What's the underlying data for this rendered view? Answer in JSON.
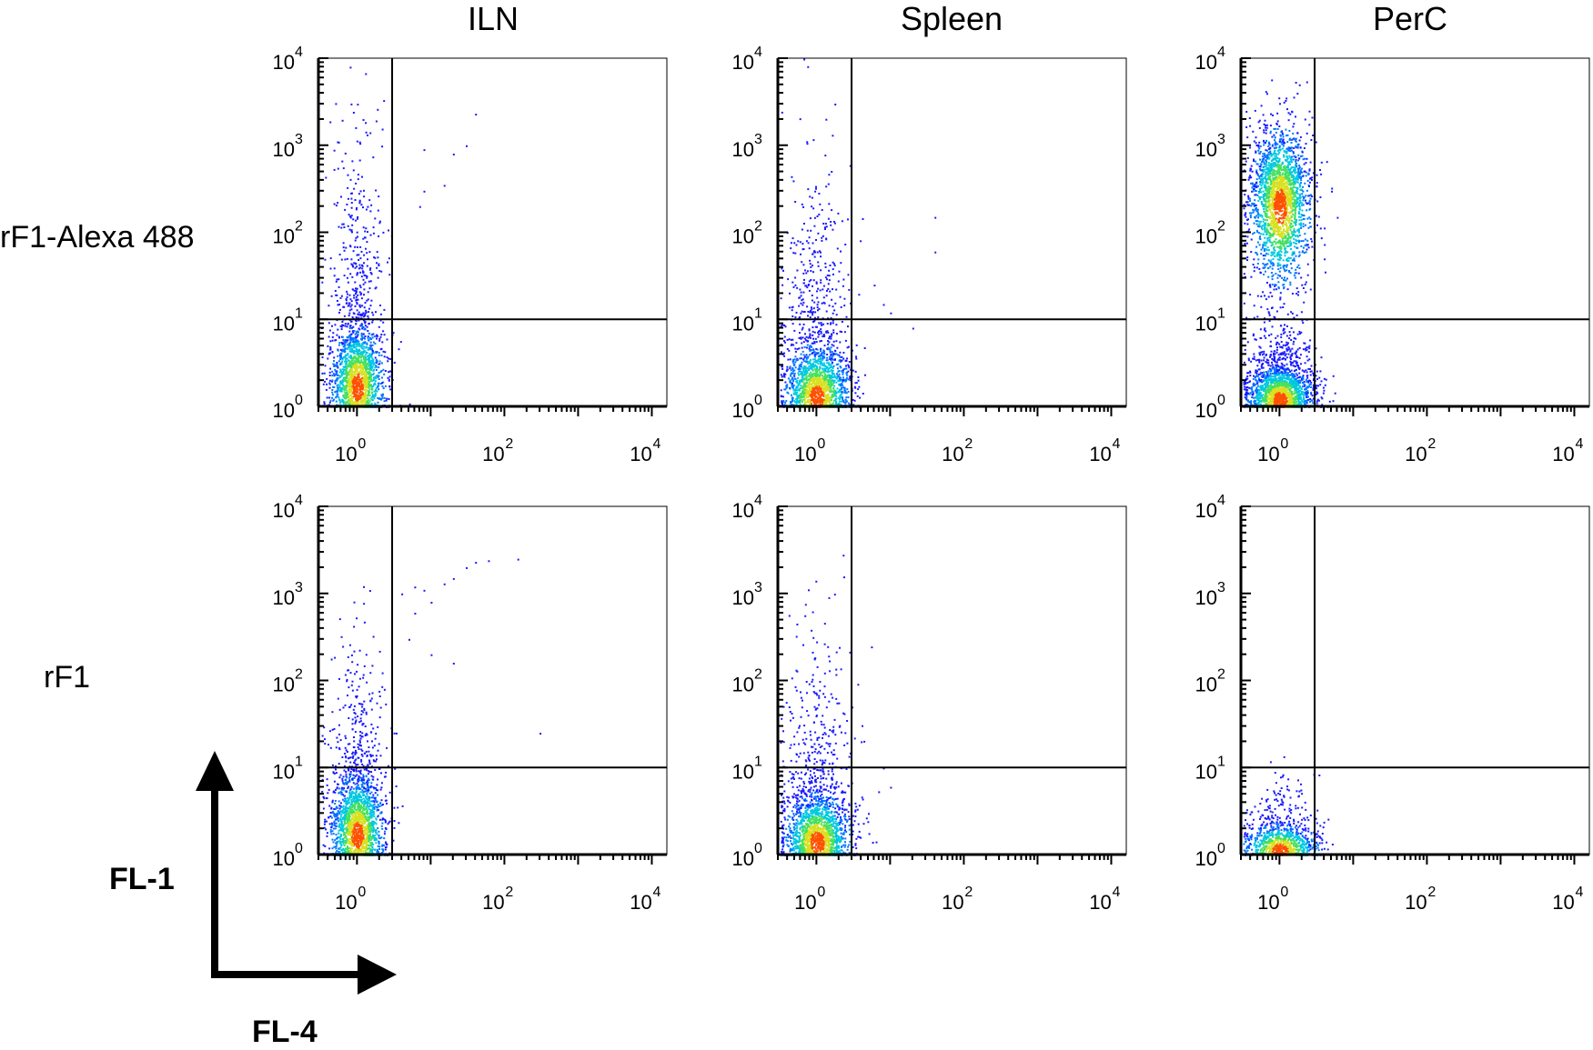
{
  "columns": [
    "ILN",
    "Spleen",
    "PerC"
  ],
  "rows": [
    "rF1-Alexa 488",
    "rF1"
  ],
  "axis_names": {
    "y": "FL-1",
    "x": "FL-4"
  },
  "tick_base": "10",
  "palette": [
    "#1a1aff",
    "#0077ff",
    "#00c8e0",
    "#44e060",
    "#d8e020",
    "#ff5000"
  ],
  "chart_data": [
    {
      "type": "scatter",
      "title": "ILN",
      "row": "rF1-Alexa 488",
      "xlabel": "FL-4",
      "ylabel": "FL-1",
      "x_scale": "log",
      "y_scale": "log",
      "xlim": [
        0.3,
        16000
      ],
      "ylim": [
        1,
        10000
      ],
      "x_ticks": [
        1,
        100,
        10000
      ],
      "y_ticks": [
        1,
        10,
        100,
        1000,
        10000
      ],
      "x_gate": 3,
      "y_gate": 10,
      "populations": [
        {
          "x_center": 1.0,
          "y_center": 1.7,
          "x_spread_decades": 0.18,
          "y_spread_decades": 0.35,
          "y_tail_to": 1500,
          "density": "high"
        }
      ],
      "outlier_points": [
        [
          8,
          900
        ],
        [
          20,
          800
        ],
        [
          30,
          1000
        ],
        [
          40,
          2300
        ],
        [
          15,
          350
        ],
        [
          7,
          200
        ],
        [
          8,
          300
        ]
      ]
    },
    {
      "type": "scatter",
      "title": "Spleen",
      "row": "rF1-Alexa 488",
      "xlabel": "FL-4",
      "ylabel": "FL-1",
      "x_scale": "log",
      "y_scale": "log",
      "xlim": [
        0.3,
        16000
      ],
      "ylim": [
        1,
        10000
      ],
      "x_ticks": [
        1,
        100,
        10000
      ],
      "y_ticks": [
        1,
        10,
        100,
        1000,
        10000
      ],
      "x_gate": 3,
      "y_gate": 10,
      "populations": [
        {
          "x_center": 1.0,
          "y_center": 1.3,
          "x_spread_decades": 0.22,
          "y_spread_decades": 0.3,
          "y_tail_to": 500,
          "density": "high"
        }
      ],
      "outlier_points": [
        [
          6,
          25
        ],
        [
          8,
          15
        ],
        [
          10,
          12
        ],
        [
          40,
          150
        ],
        [
          40,
          60
        ],
        [
          20,
          8
        ]
      ]
    },
    {
      "type": "scatter",
      "title": "PerC",
      "row": "rF1-Alexa 488",
      "xlabel": "FL-4",
      "ylabel": "FL-1",
      "x_scale": "log",
      "y_scale": "log",
      "xlim": [
        0.3,
        16000
      ],
      "ylim": [
        1,
        10000
      ],
      "x_ticks": [
        1,
        100,
        10000
      ],
      "y_ticks": [
        1,
        10,
        100,
        1000,
        10000
      ],
      "x_gate": 3,
      "y_gate": 10,
      "populations": [
        {
          "x_center": 1.0,
          "y_center": 200,
          "x_spread_decades": 0.2,
          "y_spread_decades": 0.45,
          "y_tail_to": 1500,
          "density": "high"
        },
        {
          "x_center": 1.0,
          "y_center": 1.2,
          "x_spread_decades": 0.22,
          "y_spread_decades": 0.2,
          "y_tail_to": 10,
          "density": "high"
        }
      ],
      "outlier_points": [
        [
          5,
          300
        ],
        [
          6,
          150
        ],
        [
          4,
          50
        ]
      ]
    },
    {
      "type": "scatter",
      "title": "ILN",
      "row": "rF1",
      "xlabel": "FL-4",
      "ylabel": "FL-1",
      "x_scale": "log",
      "y_scale": "log",
      "xlim": [
        0.3,
        16000
      ],
      "ylim": [
        1,
        10000
      ],
      "x_ticks": [
        1,
        100,
        10000
      ],
      "y_ticks": [
        1,
        10,
        100,
        1000,
        10000
      ],
      "x_gate": 3,
      "y_gate": 10,
      "populations": [
        {
          "x_center": 1.0,
          "y_center": 1.7,
          "x_spread_decades": 0.18,
          "y_spread_decades": 0.35,
          "y_tail_to": 300,
          "density": "high"
        }
      ],
      "outlier_points": [
        [
          4,
          1000
        ],
        [
          6,
          1200
        ],
        [
          8,
          1100
        ],
        [
          10,
          800
        ],
        [
          15,
          1300
        ],
        [
          20,
          1500
        ],
        [
          30,
          2000
        ],
        [
          40,
          2300
        ],
        [
          60,
          2400
        ],
        [
          150,
          2500
        ],
        [
          300,
          25
        ],
        [
          20,
          160
        ],
        [
          10,
          200
        ],
        [
          6,
          600
        ],
        [
          5,
          300
        ]
      ]
    },
    {
      "type": "scatter",
      "title": "Spleen",
      "row": "rF1",
      "xlabel": "FL-4",
      "ylabel": "FL-1",
      "x_scale": "log",
      "y_scale": "log",
      "xlim": [
        0.3,
        16000
      ],
      "ylim": [
        1,
        10000
      ],
      "x_ticks": [
        1,
        100,
        10000
      ],
      "y_ticks": [
        1,
        10,
        100,
        1000,
        10000
      ],
      "x_gate": 3,
      "y_gate": 10,
      "populations": [
        {
          "x_center": 1.0,
          "y_center": 1.4,
          "x_spread_decades": 0.22,
          "y_spread_decades": 0.28,
          "y_tail_to": 250,
          "density": "high"
        }
      ],
      "outlier_points": [
        [
          3,
          50
        ],
        [
          4,
          20
        ],
        [
          8,
          10
        ],
        [
          10,
          6
        ],
        [
          5,
          3
        ]
      ]
    },
    {
      "type": "scatter",
      "title": "PerC",
      "row": "rF1",
      "xlabel": "FL-4",
      "ylabel": "FL-1",
      "x_scale": "log",
      "y_scale": "log",
      "xlim": [
        0.3,
        16000
      ],
      "ylim": [
        1,
        10000
      ],
      "x_ticks": [
        1,
        100,
        10000
      ],
      "y_ticks": [
        1,
        10,
        100,
        1000,
        10000
      ],
      "x_gate": 3,
      "y_gate": 10,
      "populations": [
        {
          "x_center": 1.0,
          "y_center": 1.15,
          "x_spread_decades": 0.25,
          "y_spread_decades": 0.15,
          "y_tail_to": 7,
          "density": "medium"
        }
      ],
      "outlier_points": []
    }
  ]
}
